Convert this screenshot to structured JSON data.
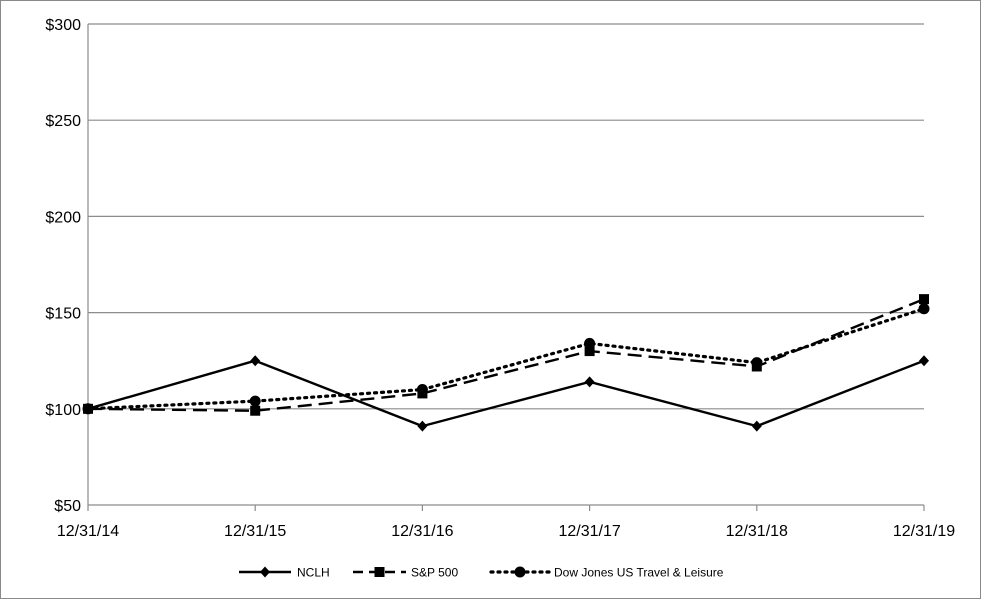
{
  "chart_data": {
    "type": "line",
    "title": "",
    "xlabel": "",
    "ylabel": "",
    "categories": [
      "12/31/14",
      "12/31/15",
      "12/31/16",
      "12/31/17",
      "12/31/18",
      "12/31/19"
    ],
    "y_ticks": [
      "$50",
      "$100",
      "$150",
      "$200",
      "$250",
      "$300"
    ],
    "ylim": [
      50,
      300
    ],
    "grid": true,
    "legend_position": "bottom",
    "series": [
      {
        "name": "NCLH",
        "values": [
          100,
          125,
          91,
          114,
          91,
          125
        ],
        "color": "#000000",
        "line_style": "solid",
        "marker": "diamond"
      },
      {
        "name": "S&P 500",
        "values": [
          100,
          99,
          108,
          130,
          122,
          157
        ],
        "color": "#000000",
        "line_style": "dashed",
        "marker": "square"
      },
      {
        "name": "Dow Jones US Travel & Leisure",
        "values": [
          100,
          104,
          110,
          134,
          124,
          152
        ],
        "color": "#000000",
        "line_style": "dotted",
        "marker": "circle"
      }
    ]
  }
}
